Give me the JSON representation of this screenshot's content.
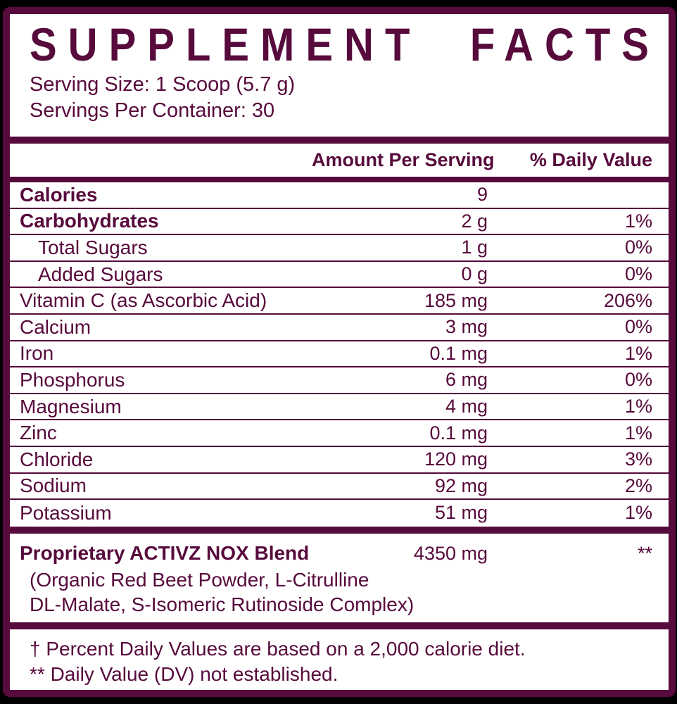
{
  "colors": {
    "brand": "#570a3c",
    "page_background": "#000000",
    "panel": "#ffffff"
  },
  "title_words": [
    "SUPPLEMENT",
    "FACTS"
  ],
  "serving": {
    "size_line": "Serving Size: 1 Scoop (5.7 g)",
    "per_container_line": "Servings Per Container: 30"
  },
  "table": {
    "headers": {
      "amount": "Amount Per Serving",
      "dv": "% Daily Value"
    },
    "rows": [
      {
        "name": "Calories",
        "amount": "9",
        "dv": ""
      },
      {
        "name": "Carbohydrates",
        "amount": "2 g",
        "dv": "1%"
      },
      {
        "name": "Total Sugars",
        "amount": "1 g",
        "dv": "0%"
      },
      {
        "name": "Added Sugars",
        "amount": "0 g",
        "dv": "0%"
      },
      {
        "name": "Vitamin C (as Ascorbic Acid)",
        "amount": "185 mg",
        "dv": "206%"
      },
      {
        "name": "Calcium",
        "amount": "3 mg",
        "dv": "0%"
      },
      {
        "name": "Iron",
        "amount": "0.1 mg",
        "dv": "1%"
      },
      {
        "name": "Phosphorus",
        "amount": "6 mg",
        "dv": "0%"
      },
      {
        "name": "Magnesium",
        "amount": "4 mg",
        "dv": "1%"
      },
      {
        "name": "Zinc",
        "amount": "0.1 mg",
        "dv": "1%"
      },
      {
        "name": "Chloride",
        "amount": "120 mg",
        "dv": "3%"
      },
      {
        "name": "Sodium",
        "amount": "92 mg",
        "dv": "2%"
      },
      {
        "name": "Potassium",
        "amount": "51 mg",
        "dv": "1%"
      }
    ]
  },
  "proprietary": {
    "name": "Proprietary ACTIVZ NOX Blend",
    "amount": "4350 mg",
    "dv": "**",
    "description_line1": "(Organic Red Beet Powder, L-Citrulline",
    "description_line2": "DL-Malate, S-Isomeric Rutinoside Complex)"
  },
  "footnotes": [
    "† Percent Daily Values are based on a 2,000 calorie diet.",
    "** Daily Value (DV) not established."
  ]
}
